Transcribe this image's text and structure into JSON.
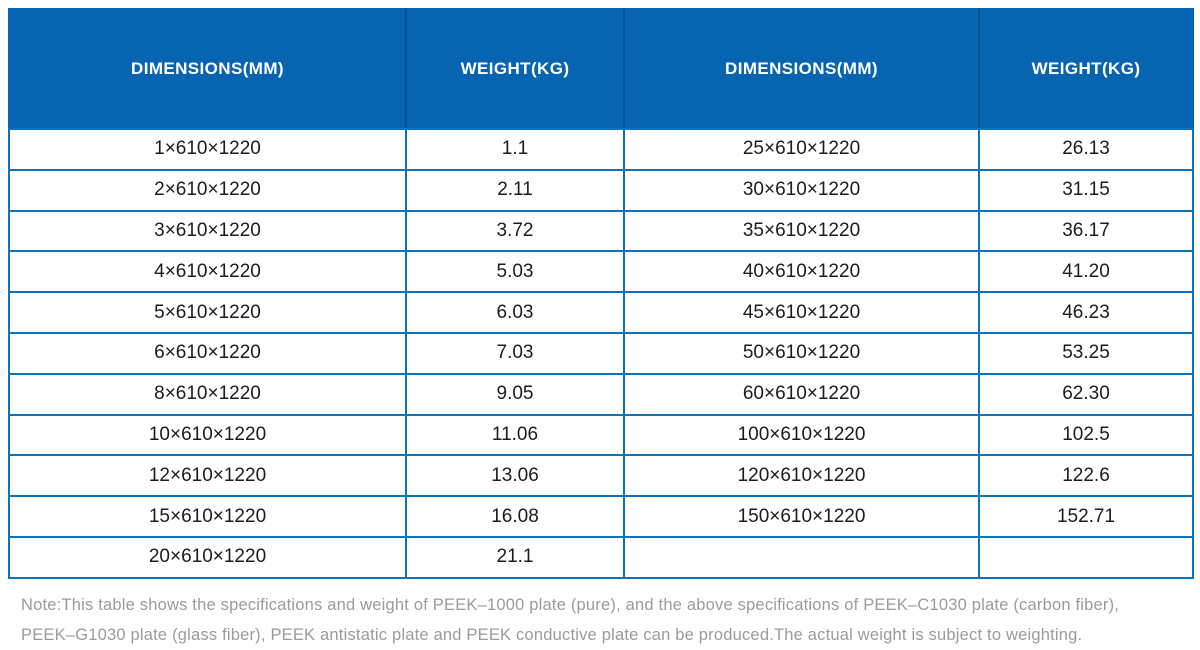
{
  "table": {
    "headers": [
      "DIMENSIONS(MM)",
      "WEIGHT(KG)",
      "DIMENSIONS(MM)",
      "WEIGHT(KG)"
    ],
    "rows": [
      [
        "1×610×1220",
        "1.1",
        "25×610×1220",
        "26.13"
      ],
      [
        "2×610×1220",
        "2.11",
        "30×610×1220",
        "31.15"
      ],
      [
        "3×610×1220",
        "3.72",
        "35×610×1220",
        "36.17"
      ],
      [
        "4×610×1220",
        "5.03",
        "40×610×1220",
        "41.20"
      ],
      [
        "5×610×1220",
        "6.03",
        "45×610×1220",
        "46.23"
      ],
      [
        "6×610×1220",
        "7.03",
        "50×610×1220",
        "53.25"
      ],
      [
        "8×610×1220",
        "9.05",
        "60×610×1220",
        "62.30"
      ],
      [
        "10×610×1220",
        "11.06",
        "100×610×1220",
        "102.5"
      ],
      [
        "12×610×1220",
        "13.06",
        "120×610×1220",
        "122.6"
      ],
      [
        "15×610×1220",
        "16.08",
        "150×610×1220",
        "152.71"
      ],
      [
        "20×610×1220",
        "21.1",
        "",
        ""
      ]
    ]
  },
  "note": "Note:This table shows the specifications and weight of PEEK–1000 plate (pure), and the above specifications of PEEK–C1030 plate (carbon fiber), PEEK–G1030 plate (glass fiber), PEEK antistatic plate and PEEK conductive plate can be produced.The actual weight is subject to weighting.",
  "colors": {
    "header_bg": "#0664b0",
    "header_separator": "#09518f",
    "grid_line": "#0c72ba",
    "cell_text": "#1c1c1c",
    "header_text": "#ffffff",
    "note_text": "#9b9b9b"
  }
}
